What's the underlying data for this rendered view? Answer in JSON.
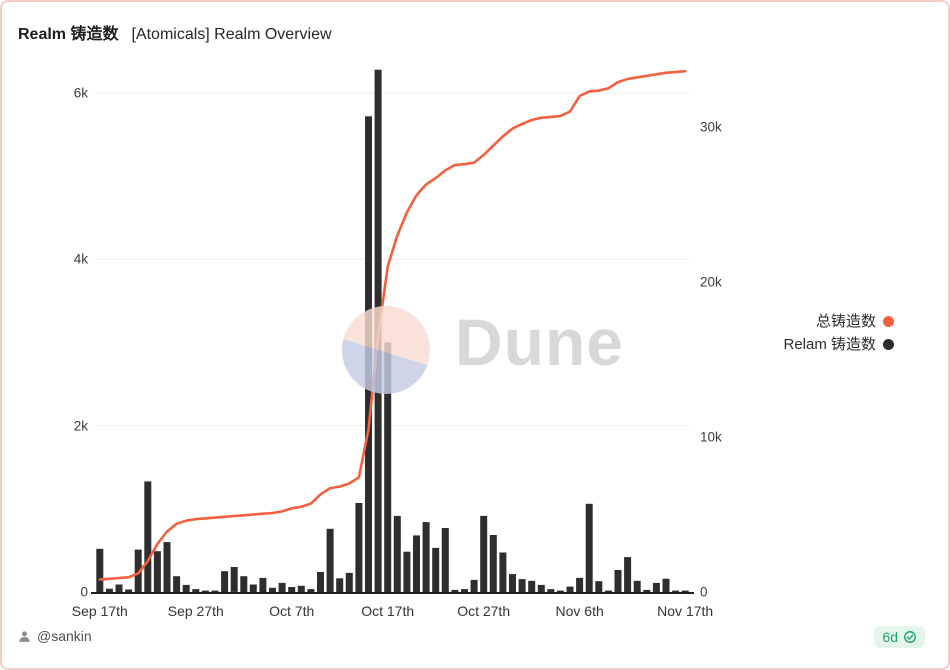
{
  "header": {
    "title_bold": "Realm 铸造数",
    "title_rest": "[Atomicals] Realm Overview"
  },
  "watermark": {
    "text": "Dune"
  },
  "legend": [
    {
      "label": "总铸造数",
      "color": "#f4603e"
    },
    {
      "label": "Relam 铸造数",
      "color": "#2b2b2b"
    }
  ],
  "footer": {
    "author": "@sankin",
    "badge": "6d"
  },
  "colors": {
    "bar": "#2e2e2e",
    "line": "#f4603e",
    "grid": "#ededed",
    "axis_line": "#1f1f1f",
    "border": "#f5cdc5",
    "badge_green": "#22a06b"
  },
  "chart_data": {
    "type": "combo (bar + line)",
    "title": "Realm 铸造数 [Atomicals] Realm Overview",
    "grid": "horizontal only",
    "legend_position": "right",
    "categories": [
      "Sep 17",
      "Sep 18",
      "Sep 19",
      "Sep 20",
      "Sep 21",
      "Sep 22",
      "Sep 23",
      "Sep 24",
      "Sep 25",
      "Sep 26",
      "Sep 27",
      "Sep 28",
      "Sep 29",
      "Sep 30",
      "Oct 1",
      "Oct 2",
      "Oct 3",
      "Oct 4",
      "Oct 5",
      "Oct 6",
      "Oct 7",
      "Oct 8",
      "Oct 9",
      "Oct 10",
      "Oct 11",
      "Oct 12",
      "Oct 13",
      "Oct 14",
      "Oct 15",
      "Oct 16",
      "Oct 17",
      "Oct 18",
      "Oct 19",
      "Oct 20",
      "Oct 21",
      "Oct 22",
      "Oct 23",
      "Oct 24",
      "Oct 25",
      "Oct 26",
      "Oct 27",
      "Oct 28",
      "Oct 29",
      "Oct 30",
      "Oct 31",
      "Nov 1",
      "Nov 2",
      "Nov 3",
      "Nov 4",
      "Nov 5",
      "Nov 6",
      "Nov 7",
      "Nov 8",
      "Nov 9",
      "Nov 10",
      "Nov 11",
      "Nov 12",
      "Nov 13",
      "Nov 14",
      "Nov 15",
      "Nov 16",
      "Nov 17"
    ],
    "series": [
      {
        "name": "Relam 铸造数",
        "type": "bar",
        "axis": "left",
        "color": "#2e2e2e",
        "values": [
          520,
          40,
          90,
          30,
          510,
          1330,
          490,
          600,
          190,
          85,
          35,
          15,
          5,
          250,
          300,
          190,
          90,
          170,
          50,
          110,
          60,
          75,
          35,
          240,
          760,
          165,
          230,
          1070,
          5720,
          6280,
          3000,
          915,
          485,
          680,
          840,
          530,
          770,
          25,
          35,
          145,
          915,
          685,
          475,
          215,
          155,
          135,
          85,
          35,
          5,
          65,
          170,
          1060,
          130,
          5,
          265,
          420,
          135,
          25,
          110,
          160,
          12,
          8
        ]
      },
      {
        "name": "总铸造数",
        "type": "line",
        "axis": "right",
        "color": "#f4603e",
        "values": [
          800,
          850,
          900,
          950,
          1200,
          2000,
          3100,
          3900,
          4400,
          4600,
          4700,
          4750,
          4800,
          4850,
          4900,
          4950,
          5000,
          5050,
          5100,
          5200,
          5400,
          5500,
          5700,
          6300,
          6700,
          6800,
          7000,
          7400,
          10500,
          16500,
          21000,
          23000,
          24500,
          25600,
          26300,
          26700,
          27200,
          27550,
          27600,
          27700,
          28200,
          28800,
          29400,
          29900,
          30200,
          30450,
          30600,
          30650,
          30700,
          31000,
          32000,
          32300,
          32350,
          32500,
          32900,
          33100,
          33200,
          33300,
          33400,
          33500,
          33550,
          33600
        ]
      }
    ],
    "left_axis": {
      "label": "",
      "ticks": [
        "0",
        "2k",
        "4k",
        "6k"
      ],
      "tick_values": [
        0,
        2000,
        4000,
        6000
      ],
      "range": [
        0,
        6340
      ]
    },
    "right_axis": {
      "label": "",
      "ticks": [
        "0",
        "10k",
        "20k",
        "30k"
      ],
      "tick_values": [
        0,
        10000,
        20000,
        30000
      ],
      "range": [
        0,
        34300
      ]
    },
    "x_ticks": [
      {
        "label": "Sep 17th",
        "day": 0
      },
      {
        "label": "Sep 27th",
        "day": 10
      },
      {
        "label": "Oct 7th",
        "day": 20
      },
      {
        "label": "Oct 17th",
        "day": 30
      },
      {
        "label": "Oct 27th",
        "day": 40
      },
      {
        "label": "Nov 6th",
        "day": 50
      },
      {
        "label": "Nov 17th",
        "day": 61
      }
    ]
  }
}
